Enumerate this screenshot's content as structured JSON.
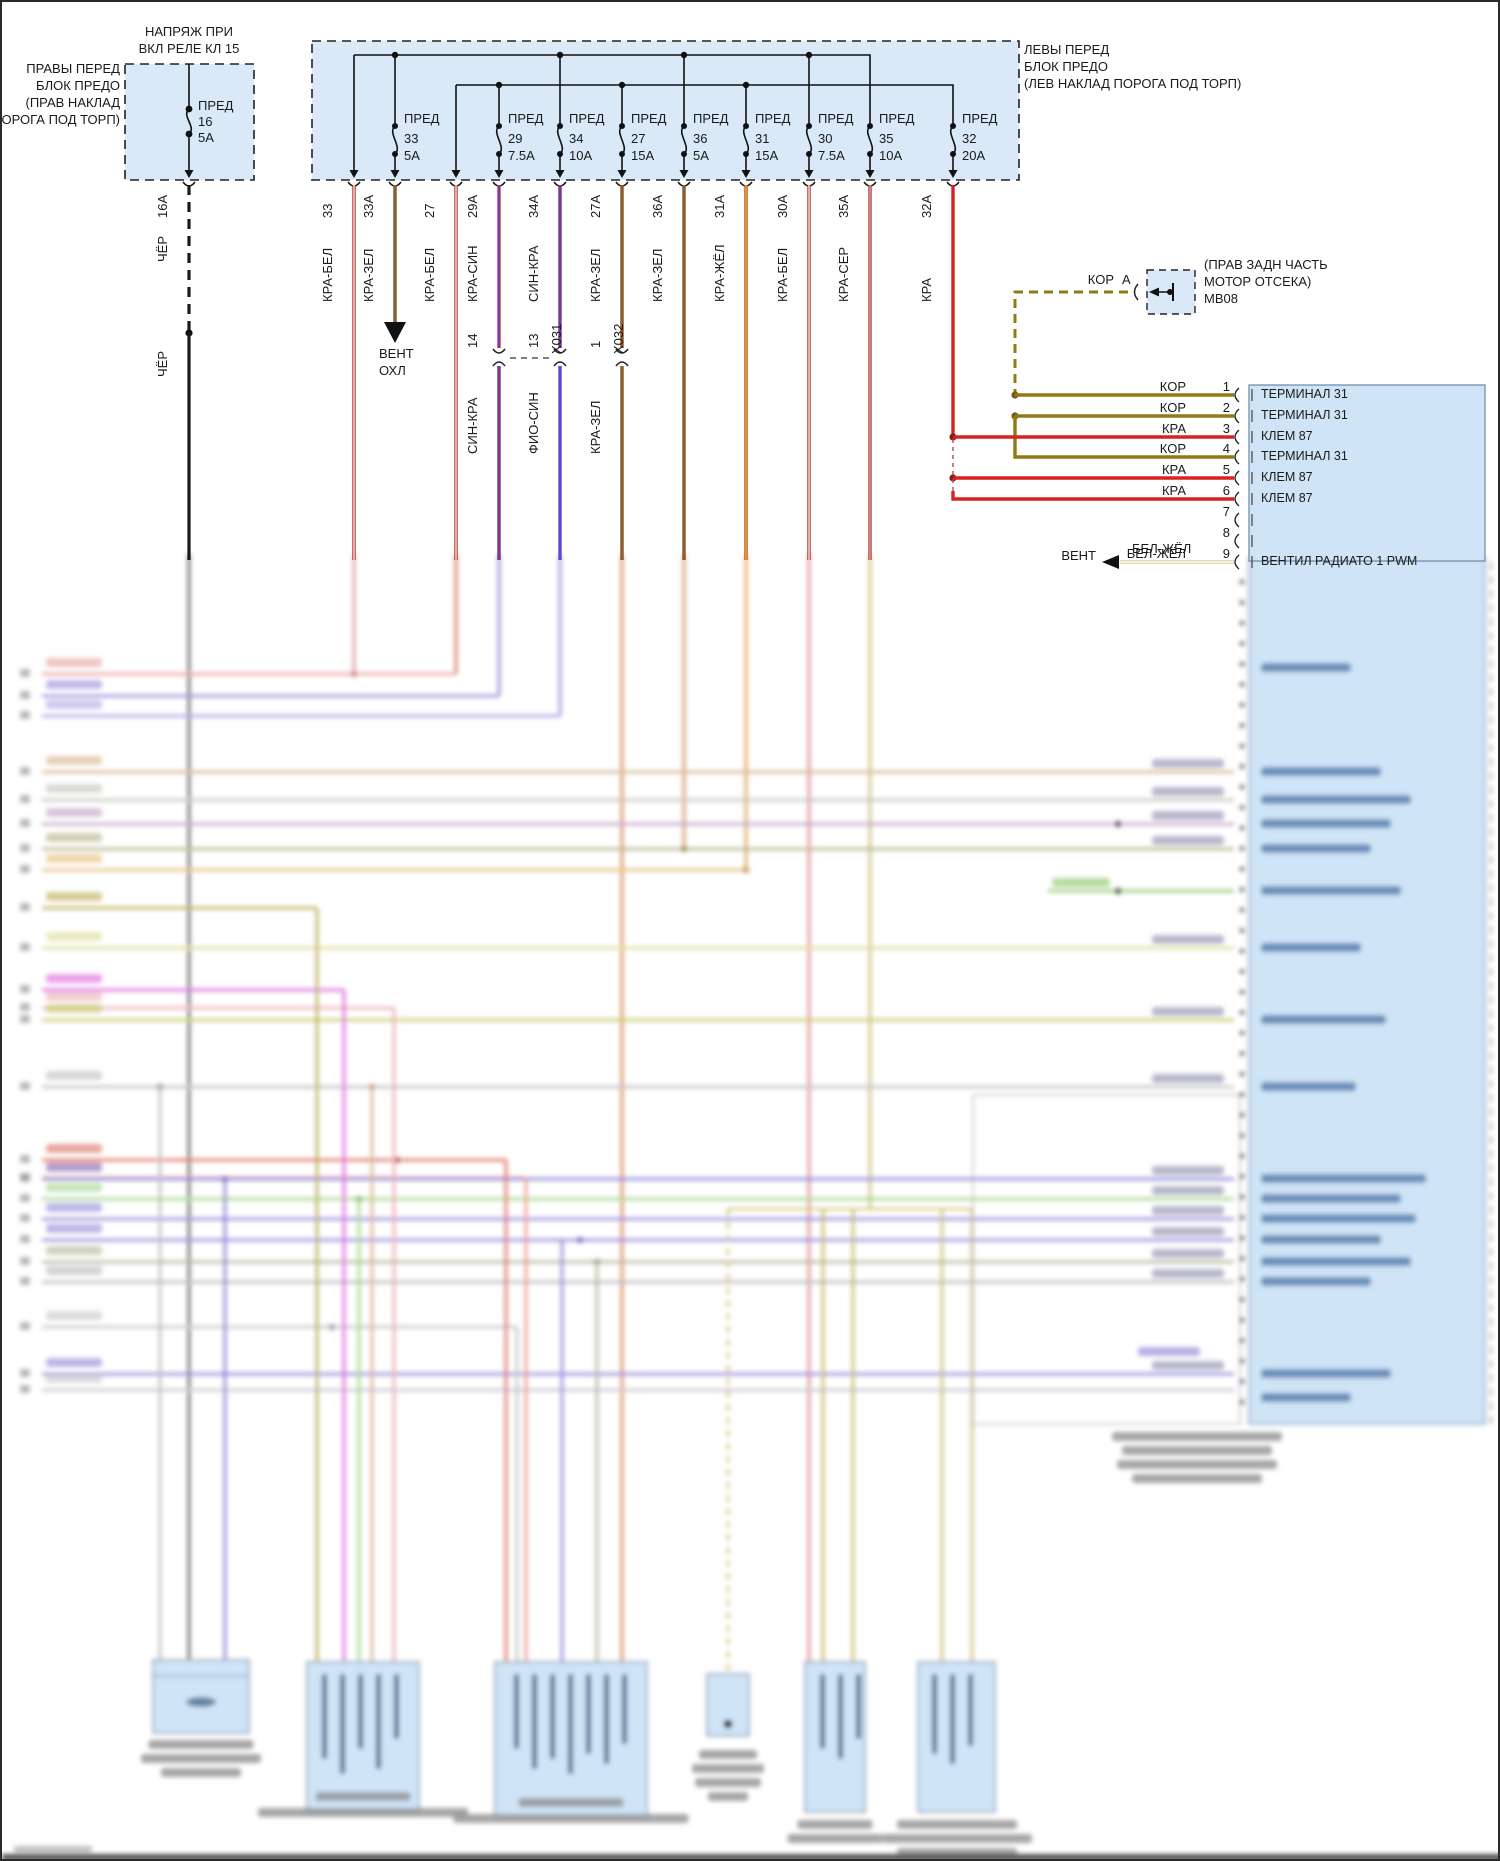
{
  "diagram": {
    "power_note": [
      "НАПРЯЖ ПРИ",
      "ВКЛ РЕЛЕ КЛ 15"
    ],
    "right_front_fusebox": {
      "label": [
        "ПРАВЫ ПЕРЕД",
        "БЛОК ПРЕДО",
        "(ПРАВ НАКЛАД",
        "ПОРОГА ПОД ТОРП)"
      ],
      "fuse": {
        "name": "ПРЕД",
        "number": "16",
        "amp": "5А"
      },
      "output": {
        "pin": "16А",
        "wire": "ЧЁР",
        "wire_after_splice": "ЧЁР"
      }
    },
    "left_front_fusebox": {
      "label": [
        "ЛЕВЫ ПЕРЕД",
        "БЛОК ПРЕДО",
        "(ЛЕВ НАКЛАД ПОРОГА ПОД ТОРП)"
      ],
      "fuses": [
        {
          "name": "ПРЕД",
          "number": "33",
          "amp": "5А"
        },
        {
          "name": "ПРЕД",
          "number": "29",
          "amp": "7.5А"
        },
        {
          "name": "ПРЕД",
          "number": "34",
          "amp": "10А"
        },
        {
          "name": "ПРЕД",
          "number": "27",
          "amp": "15А"
        },
        {
          "name": "ПРЕД",
          "number": "36",
          "amp": "5А"
        },
        {
          "name": "ПРЕД",
          "number": "31",
          "amp": "15А"
        },
        {
          "name": "ПРЕД",
          "number": "30",
          "amp": "7.5А"
        },
        {
          "name": "ПРЕД",
          "number": "35",
          "amp": "10А"
        },
        {
          "name": "ПРЕД",
          "number": "32",
          "amp": "20А"
        }
      ],
      "outputs": [
        {
          "pin": "33",
          "wire": "КРА-БЕЛ"
        },
        {
          "pin": "33А",
          "wire": "КРА-ЗЕЛ"
        },
        {
          "pin": "27",
          "wire": "КРА-БЕЛ"
        },
        {
          "pin": "29А",
          "wire": "КРА-СИН"
        },
        {
          "pin": "34А",
          "wire": "СИН-КРА"
        },
        {
          "pin": "27А",
          "wire": "КРА-ЗЕЛ"
        },
        {
          "pin": "36А",
          "wire": "КРА-ЗЕЛ"
        },
        {
          "pin": "31А",
          "wire": "КРА-ЖЁЛ"
        },
        {
          "pin": "30А",
          "wire": "КРА-БЕЛ"
        },
        {
          "pin": "35А",
          "wire": "КРА-СЕР"
        },
        {
          "pin": "32А",
          "wire": "КРА"
        }
      ]
    },
    "fan_feed": {
      "label": [
        "ВЕНТ",
        "ОХЛ"
      ]
    },
    "inline_connectors": {
      "x031": {
        "name": "X031",
        "pin_left": "14",
        "pin_right": "13",
        "wire_below_left": "СИН-КРА",
        "wire_below_right": "ФИО-СИН"
      },
      "x032": {
        "name": "X032",
        "pin": "1",
        "wire_below": "КРА-ЗЕЛ"
      }
    },
    "ground_point": {
      "wire": "КОР",
      "pin": "А",
      "label": [
        "(ПРАВ ЗАДН ЧАСТЬ",
        "МОТОР ОТСЕКА)",
        "МВ08"
      ]
    },
    "relay_module": {
      "pins": [
        {
          "num": "1",
          "wire": "КОР",
          "label": "ТЕРМИНАЛ 31"
        },
        {
          "num": "2",
          "wire": "КОР",
          "label": "ТЕРМИНАЛ 31"
        },
        {
          "num": "3",
          "wire": "КРА",
          "label": "КЛЕМ 87"
        },
        {
          "num": "4",
          "wire": "КОР",
          "label": "ТЕРМИНАЛ 31"
        },
        {
          "num": "5",
          "wire": "КРА",
          "label": "КЛЕМ 87"
        },
        {
          "num": "6",
          "wire": "КРА",
          "label": "КЛЕМ 87"
        },
        {
          "num": "7",
          "wire": "",
          "label": ""
        },
        {
          "num": "8",
          "wire": "",
          "label": ""
        },
        {
          "num": "9",
          "wire": "БЕЛ-ЖЁЛ",
          "label": "ВЕНТИЛ РАДИАТО 1 PWM"
        }
      ],
      "fan_ref": {
        "label": "ВЕНТ",
        "wire": "БЕЛ-ЖЁЛ"
      }
    },
    "colors": {
      "box_fill": "#d9e9f8",
      "block_fill": "#cfe4f7",
      "wire_main": {
        "КРА-БЕЛ": "#b43028",
        "КРА-ЗЕЛ": "#b03a20",
        "КРА-СИН": "#c23858",
        "СИН-КРА": "#4b3bc4",
        "КРА-ЖЁЛ": "#c24a22",
        "КРА-СЕР": "#c03434",
        "КРА": "#d82222",
        "КОР": "#8f7a14",
        "ЧЁР": "#1a1a1a",
        "БЕЛ-ЖЁЛ": "#d8d2a0",
        "ФИО-СИН": "#7a3ecc"
      },
      "wire_core": {
        "КРА-БЕЛ": "#ffffff",
        "КРА-ЗЕЛ": "#3f8f3f",
        "КРА-СИН": "#4444cc",
        "СИН-КРА": "#c03030",
        "КРА-ЖЁЛ": "#e8c838",
        "КРА-СЕР": "#c0c0c0",
        "БЕЛ-ЖЁЛ": "#ffffff",
        "ФИО-СИН": "#3555cc"
      }
    }
  }
}
